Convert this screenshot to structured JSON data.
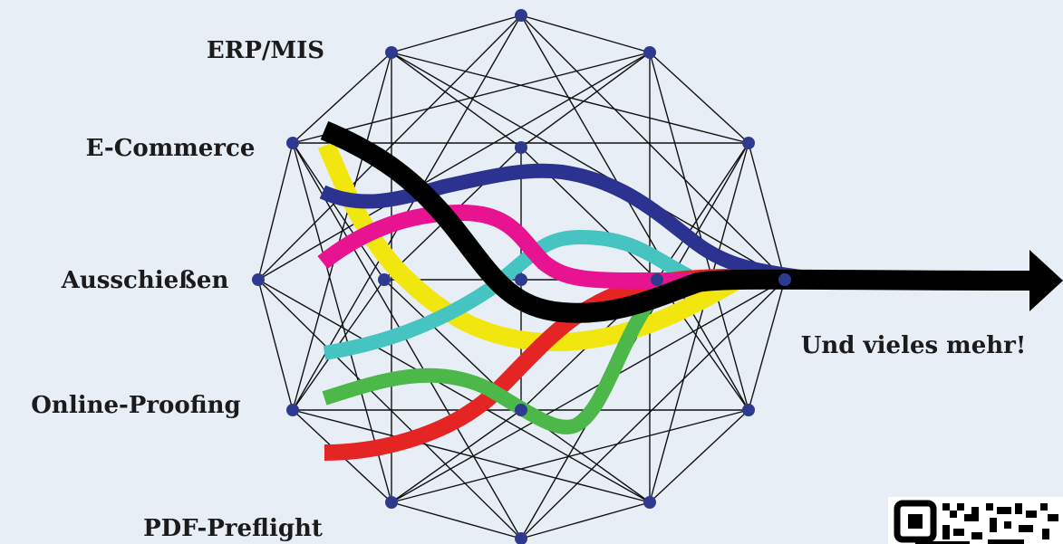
{
  "labels": {
    "erp": "ERP/MIS",
    "ecommerce": "E-Commerce",
    "ausschiessen": "Ausschießen",
    "online_proofing": "Online-Proofing",
    "pdf_preflight": "PDF-Preflight",
    "more": "Und vieles mehr!"
  },
  "colors": {
    "background": "#e8eef6",
    "node": "#2e3a8f",
    "edge": "#111111",
    "flow_black": "#000000",
    "flow_navy": "#2b3290",
    "flow_yellow": "#f2e60f",
    "flow_magenta": "#e81391",
    "flow_cyan": "#45c4c2",
    "flow_red": "#e52424",
    "flow_green": "#4cb849"
  },
  "icons": [
    "qr-code-icon"
  ]
}
